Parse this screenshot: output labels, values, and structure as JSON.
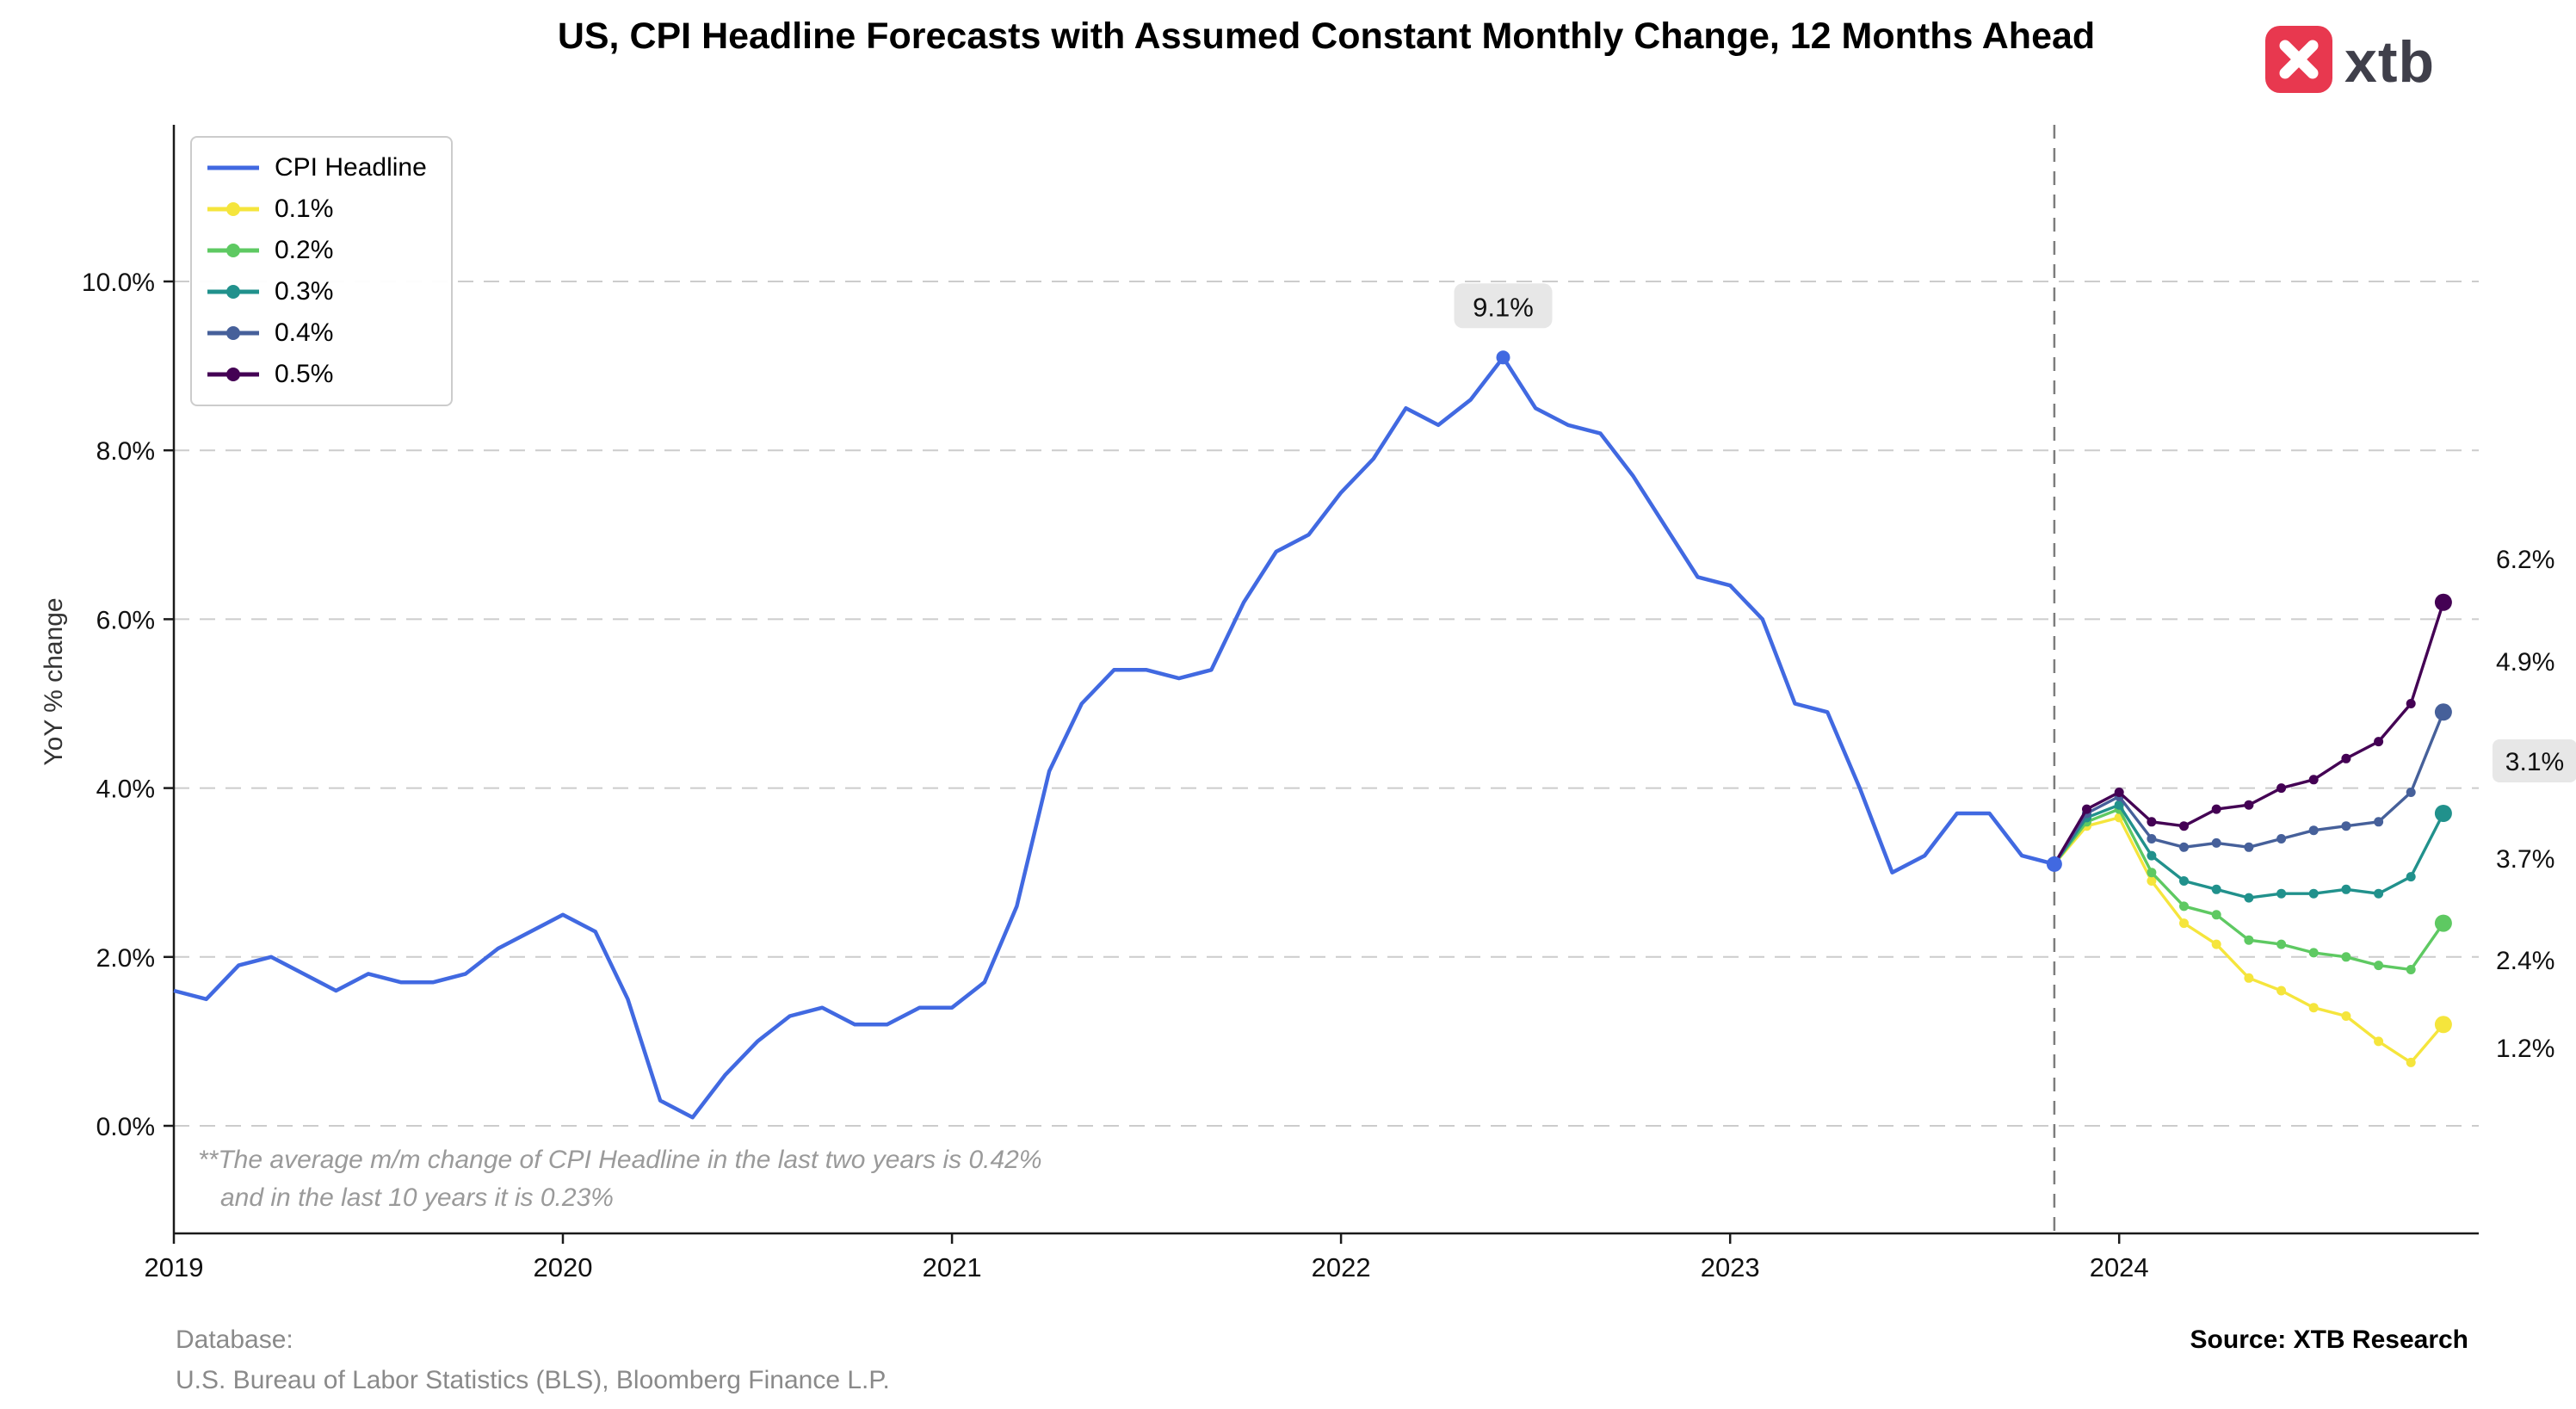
{
  "logo": {
    "brand": "xtb",
    "accent_color": "#e8384f"
  },
  "chart_data": {
    "type": "line",
    "title": "US, CPI Headline Forecasts with Assumed Constant Monthly Change, 12 Months Ahead",
    "xlabel": "",
    "ylabel": "YoY % change",
    "grid": true,
    "legend_position": "upper left",
    "x_tick_labels": [
      "2019",
      "2020",
      "2021",
      "2022",
      "2023",
      "2024"
    ],
    "y_tick_labels": [
      "0.0%",
      "2.0%",
      "4.0%",
      "6.0%",
      "8.0%",
      "10.0%"
    ],
    "ylim": [
      -1.3,
      11.8
    ],
    "x_start": "2019-01",
    "forecast_start": "2023-12",
    "actual": {
      "name": "CPI Headline",
      "color": "#4169e1",
      "values": [
        1.6,
        1.5,
        1.9,
        2.0,
        1.8,
        1.6,
        1.8,
        1.7,
        1.7,
        1.8,
        2.1,
        2.3,
        2.5,
        2.3,
        1.5,
        0.3,
        0.1,
        0.6,
        1.0,
        1.3,
        1.4,
        1.2,
        1.2,
        1.4,
        1.4,
        1.7,
        2.6,
        4.2,
        5.0,
        5.4,
        5.4,
        5.3,
        5.4,
        6.2,
        6.8,
        7.0,
        7.5,
        7.9,
        8.5,
        8.3,
        8.6,
        9.1,
        8.5,
        8.3,
        8.2,
        7.7,
        7.1,
        6.5,
        6.4,
        6.0,
        5.0,
        4.9,
        4.0,
        3.0,
        3.2,
        3.7,
        3.7,
        3.2,
        3.1
      ]
    },
    "forecasts": [
      {
        "name": "0.1%",
        "color": "#f5e53c",
        "end_label": "1.2%",
        "values": [
          3.55,
          3.65,
          2.9,
          2.4,
          2.15,
          1.75,
          1.6,
          1.4,
          1.3,
          1.0,
          0.75,
          1.2
        ]
      },
      {
        "name": "0.2%",
        "color": "#5ec962",
        "end_label": "2.4%",
        "values": [
          3.6,
          3.75,
          3.0,
          2.6,
          2.5,
          2.2,
          2.15,
          2.05,
          2.0,
          1.9,
          1.85,
          2.4
        ]
      },
      {
        "name": "0.3%",
        "color": "#21918c",
        "end_label": "3.7%",
        "values": [
          3.65,
          3.8,
          3.2,
          2.9,
          2.8,
          2.7,
          2.75,
          2.75,
          2.8,
          2.75,
          2.95,
          3.7
        ]
      },
      {
        "name": "0.4%",
        "color": "#46609a",
        "end_label": "4.9%",
        "values": [
          3.7,
          3.9,
          3.4,
          3.3,
          3.35,
          3.3,
          3.4,
          3.5,
          3.55,
          3.6,
          3.95,
          4.9
        ]
      },
      {
        "name": "0.5%",
        "color": "#440154",
        "end_label": "6.2%",
        "values": [
          3.75,
          3.95,
          3.6,
          3.55,
          3.75,
          3.8,
          4.0,
          4.1,
          4.35,
          4.55,
          5.0,
          6.2
        ]
      }
    ],
    "annotations": {
      "peak": {
        "label": "9.1%",
        "month_index": 41,
        "value": 9.1
      },
      "latest": {
        "label": "3.1%",
        "value": 3.1
      }
    },
    "end_labels": [
      {
        "text": "6.2%",
        "boxed": false
      },
      {
        "text": "4.9%",
        "boxed": false
      },
      {
        "text": "3.1%",
        "boxed": true
      },
      {
        "text": "3.7%",
        "boxed": false
      },
      {
        "text": "2.4%",
        "boxed": false
      },
      {
        "text": "1.2%",
        "boxed": false
      }
    ],
    "footnote": [
      "**The average m/m change of CPI Headline in the last two years is 0.42%",
      "and in the last 10 years it is 0.23%"
    ]
  },
  "footer": {
    "database_label": "Database:",
    "database_value": "U.S. Bureau of Labor Statistics (BLS), Bloomberg Finance L.P.",
    "source": "Source: XTB Research"
  }
}
